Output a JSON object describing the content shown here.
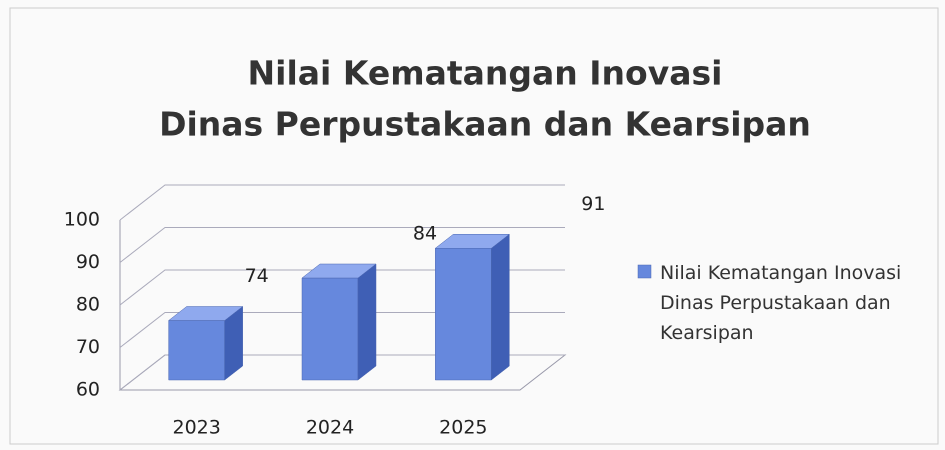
{
  "chart_data": {
    "type": "bar3d",
    "title": "Nilai Kematangan Inovasi",
    "subtitle": "Dinas Perpustakaan dan Kearsipan",
    "categories": [
      "2023",
      "2024",
      "2025"
    ],
    "series": [
      {
        "name": "Nilai Kematangan Inovasi Dinas Perpustakaan dan Kearsipan",
        "color": "#6688dd",
        "values": [
          74,
          84,
          91
        ]
      }
    ],
    "ylim": [
      60,
      100
    ],
    "yticks": [
      60,
      70,
      80,
      90,
      100
    ],
    "grid": true,
    "legend": "right"
  }
}
